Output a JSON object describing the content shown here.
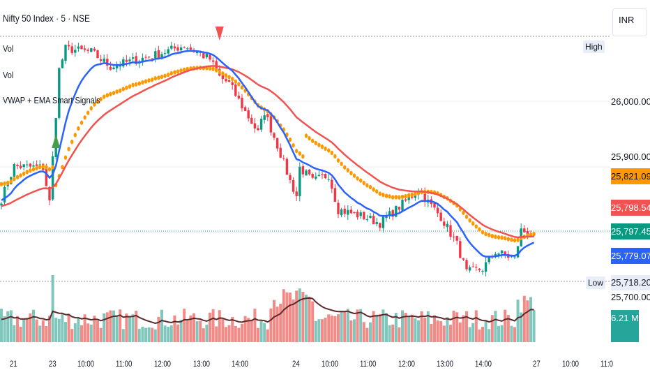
{
  "header": {
    "symbol_title": "Nifty 50 Index · 5 · NSE",
    "indicators": [
      "Vol",
      "Vol",
      "VWAP + EMA Smart Signals"
    ]
  },
  "currency": "INR",
  "price_scale": {
    "ticks": [
      "26,000.00",
      "25,900.00",
      "25,700.00"
    ],
    "high_label": "High",
    "low_label": "Low"
  },
  "price_tags": [
    {
      "value": "25,821.09",
      "color": "#ff9800",
      "text_color": "#131722"
    },
    {
      "value": "25,798.54",
      "color": "#f05350",
      "text_color": "#ffffff"
    },
    {
      "value": "25,797.45",
      "color": "#089981",
      "text_color": "#ffffff"
    },
    {
      "value": "25,779.07",
      "color": "#2962ff",
      "text_color": "#ffffff"
    },
    {
      "value": "25,718.20",
      "color": "#e8eef8",
      "text_color": "#131722"
    }
  ],
  "volume_tag": {
    "value": "6.21 M",
    "color": "#26a69a"
  },
  "chart_data": {
    "type": "candlestick",
    "price_range": [
      25700,
      26100
    ],
    "high": 26099,
    "low": 25718.2,
    "price_path": [
      [
        0,
        25851
      ],
      [
        4,
        25901
      ],
      [
        13,
        25899
      ],
      [
        15,
        25846
      ],
      [
        18,
        26048
      ],
      [
        20,
        26080
      ],
      [
        28,
        26075
      ],
      [
        34,
        26053
      ],
      [
        47,
        26069
      ],
      [
        57,
        26085
      ],
      [
        65,
        26064
      ],
      [
        68,
        26037
      ],
      [
        71,
        26027
      ],
      [
        76,
        25984
      ],
      [
        80,
        25952
      ],
      [
        82,
        25984
      ],
      [
        87,
        25920
      ],
      [
        90,
        25878
      ],
      [
        92,
        25856
      ],
      [
        93,
        25899
      ],
      [
        97,
        25878
      ],
      [
        102,
        25888
      ],
      [
        105,
        25835
      ],
      [
        113,
        25824
      ],
      [
        118,
        25814
      ],
      [
        123,
        25835
      ],
      [
        128,
        25856
      ],
      [
        130,
        25867
      ],
      [
        133,
        25846
      ],
      [
        137,
        25824
      ],
      [
        142,
        25782
      ],
      [
        145,
        25739
      ],
      [
        150,
        25745
      ],
      [
        154,
        25771
      ],
      [
        160,
        25760
      ],
      [
        162,
        25803
      ],
      [
        166,
        25797
      ]
    ],
    "series": [
      {
        "name": "EMA fast",
        "color": "#2962ff"
      },
      {
        "name": "EMA slow",
        "color": "#f05350"
      },
      {
        "name": "VWAP dots",
        "color": "#ff9800"
      }
    ],
    "signals": [
      {
        "type": "buy",
        "bar": 17,
        "color": "#43a047"
      },
      {
        "type": "sell",
        "bar": 68,
        "color": "#f05350"
      }
    ],
    "x_ticks": [
      {
        "label": "21",
        "bar": 4
      },
      {
        "label": "23",
        "bar": 16
      },
      {
        "label": "10:00",
        "bar": 25
      },
      {
        "label": "11:00",
        "bar": 37
      },
      {
        "label": "12:00",
        "bar": 49
      },
      {
        "label": "13:00",
        "bar": 61
      },
      {
        "label": "14:00",
        "bar": 73
      },
      {
        "label": "24",
        "bar": 92
      },
      {
        "label": "10:00",
        "bar": 101
      },
      {
        "label": "11:00",
        "bar": 113
      },
      {
        "label": "12:00",
        "bar": 125
      },
      {
        "label": "13:00",
        "bar": 137
      },
      {
        "label": "14:00",
        "bar": 149
      },
      {
        "label": "27",
        "bar": 167
      },
      {
        "label": "10:00",
        "bar": 176
      },
      {
        "label": "11:0",
        "bar": 188
      }
    ]
  }
}
